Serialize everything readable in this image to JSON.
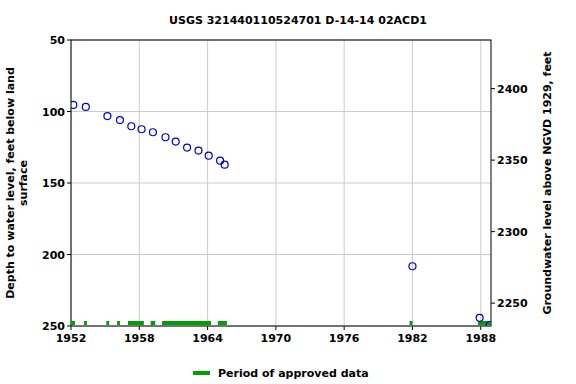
{
  "chart_data": {
    "type": "scatter",
    "title": "USGS 321440110524701 D-14-14 02ACD1",
    "y_label": "Depth to water level, feet below land\nsurface",
    "y2_label": "Groundwater level above NGVD 1929, feet",
    "x": [
      1952.2,
      1953.3,
      1955.2,
      1956.3,
      1957.3,
      1958.2,
      1959.2,
      1960.3,
      1961.2,
      1962.2,
      1963.2,
      1964.1,
      1965.1,
      1965.5,
      1982.0,
      1987.9,
      1988.8
    ],
    "values": [
      95.4,
      96.8,
      103.2,
      106,
      110.3,
      112.4,
      114.5,
      118,
      121,
      125.2,
      127.3,
      130.9,
      134.4,
      137.2,
      208.2,
      244.3,
      249.3
    ],
    "color": "#0000cc",
    "marker": "open circle",
    "xlim": [
      1952,
      1988.9
    ],
    "xticks": [
      1952,
      1958,
      1964,
      1970,
      1976,
      1982,
      1988
    ],
    "ylim": [
      50,
      250
    ],
    "yticks": [
      50,
      100,
      150,
      200,
      250
    ],
    "y2lim": [
      2434,
      2234
    ],
    "y2ticks": [
      2250,
      2300,
      2350,
      2400
    ],
    "grid": true,
    "legend": "bottom",
    "approved": {
      "label": "Period of approved data",
      "color": "#00a000",
      "periods": [
        [
          1952.0,
          1952.35
        ],
        [
          1953.15,
          1953.4
        ],
        [
          1955.1,
          1955.35
        ],
        [
          1956.05,
          1956.3
        ],
        [
          1957.0,
          1958.4
        ],
        [
          1959.0,
          1959.4
        ],
        [
          1960.0,
          1964.3
        ],
        [
          1964.9,
          1965.7
        ],
        [
          1981.75,
          1982.0
        ],
        [
          1987.75,
          1988.9
        ]
      ]
    }
  }
}
